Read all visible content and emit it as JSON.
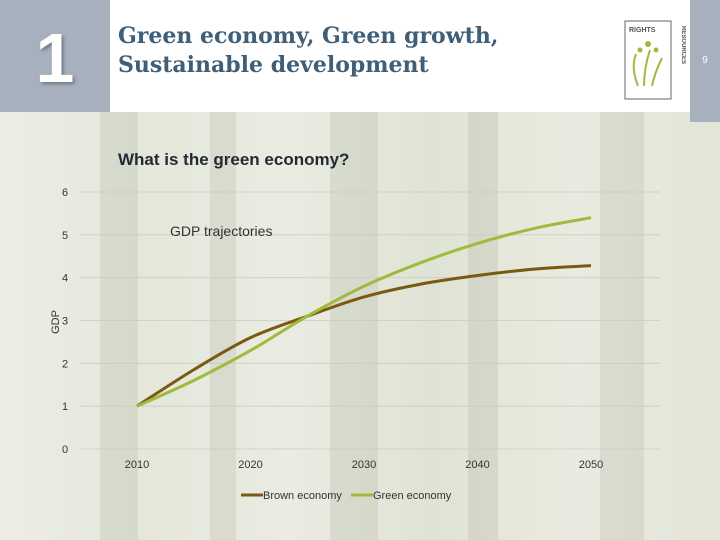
{
  "slide": {
    "section_number": "1",
    "title_line1": "Green economy, Green growth,",
    "title_line2": "Sustainable development",
    "page_number": "9",
    "subtitle": "What is the green economy?",
    "logo": {
      "text_top": "RIGHTS",
      "text_side": "RESOURCES",
      "icon": "hands-tree-icon"
    }
  },
  "colors": {
    "header_badge": "#a7b0bd",
    "title": "#3f5f78",
    "brown": "#7a5a12",
    "green": "#9fba3e"
  },
  "chart_data": {
    "type": "line",
    "title": "GDP trajectories",
    "xlabel": "",
    "ylabel": "GDP",
    "x_ticks": [
      "2010",
      "2020",
      "2030",
      "2040",
      "2050"
    ],
    "y_ticks": [
      "0",
      "1",
      "2",
      "3",
      "4",
      "5",
      "6"
    ],
    "xlim": [
      2010,
      2050
    ],
    "ylim": [
      0,
      6
    ],
    "grid": true,
    "legend": "bottom",
    "series": [
      {
        "name": "Brown economy",
        "color": "#7a5a12",
        "x": [
          2010,
          2015,
          2020,
          2025,
          2030,
          2035,
          2040,
          2045,
          2050
        ],
        "y": [
          1.0,
          1.85,
          2.6,
          3.1,
          3.55,
          3.85,
          4.05,
          4.2,
          4.28
        ]
      },
      {
        "name": "Green economy",
        "color": "#9fba3e",
        "x": [
          2010,
          2015,
          2020,
          2025,
          2030,
          2035,
          2040,
          2045,
          2050
        ],
        "y": [
          1.0,
          1.6,
          2.3,
          3.1,
          3.8,
          4.35,
          4.8,
          5.15,
          5.4
        ]
      }
    ]
  }
}
